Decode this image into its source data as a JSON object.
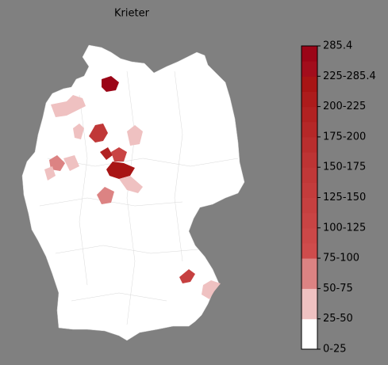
{
  "title": "Krieter",
  "colorbar": {
    "ticks": [
      "0-25",
      "25-50",
      "50-75",
      "75-100",
      "100-125",
      "125-150",
      "150-175",
      "175-200",
      "200-225",
      "225-285.4",
      "285.4"
    ],
    "colors": [
      "#ffffff",
      "#ffffff",
      "#efc1c1",
      "#efc1c1",
      "#dc8383",
      "#dc8383",
      "#cf4c4c",
      "#cc4848",
      "#c94444",
      "#c64040",
      "#c33c3c",
      "#c03838",
      "#bd3434",
      "#b92e2e",
      "#b52828",
      "#b12222",
      "#ad1c1c",
      "#a81515",
      "#a20d1c",
      "#9b0517"
    ]
  }
}
